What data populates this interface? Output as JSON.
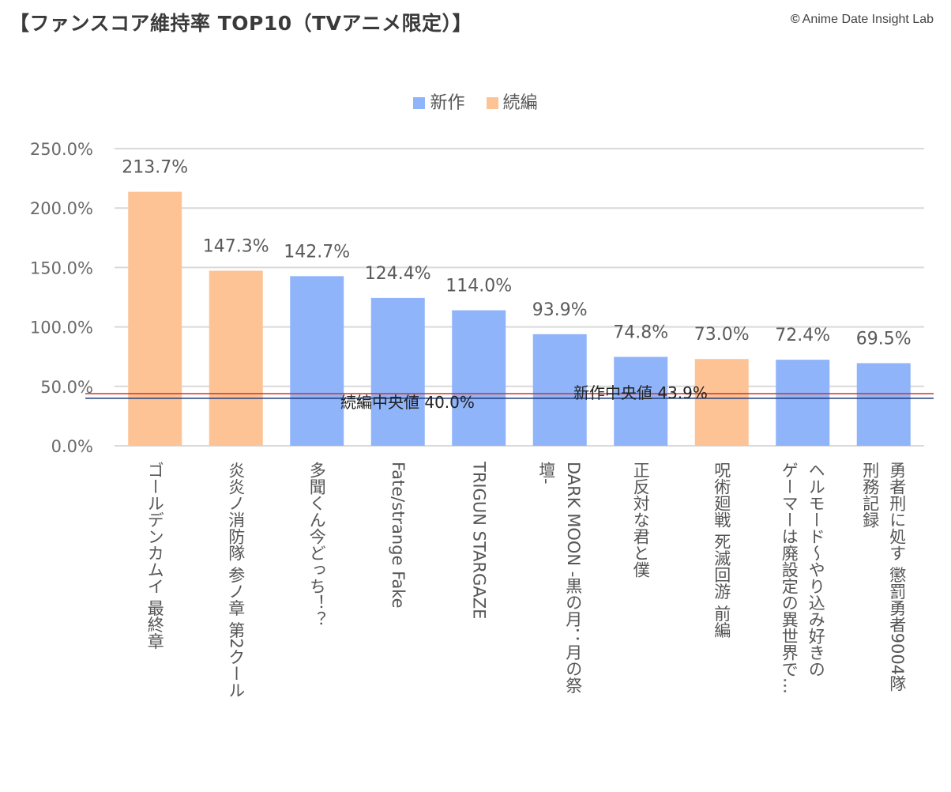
{
  "header": {
    "title": "【ファンスコア維持率 TOP10（TVアニメ限定）】",
    "credit_symbol": "©",
    "credit": "Anime Date Insight Lab"
  },
  "colors": {
    "new": "#8fb4f9",
    "sequel": "#fec395",
    "new_median_line": "#d93025",
    "sequel_median_line": "#1f3a7a",
    "grid": "#d9d9d9"
  },
  "chart_data": {
    "type": "bar",
    "title": "【ファンスコア維持率 TOP10（TVアニメ限定）】",
    "xlabel": "",
    "ylabel": "",
    "ylim": [
      0,
      250
    ],
    "yticks": [
      0,
      50,
      100,
      150,
      200,
      250
    ],
    "ytick_labels": [
      "0.0%",
      "50.0%",
      "100.0%",
      "150.0%",
      "200.0%",
      "250.0%"
    ],
    "legend": [
      {
        "name": "新作",
        "key": "new"
      },
      {
        "name": "続編",
        "key": "sequel"
      }
    ],
    "legend_position": "top-center",
    "categories": [
      "ゴールデンカムイ 最終章",
      "炎炎ノ消防隊 参ノ章 第2クール",
      "多聞くん今どっち！？",
      "Fate/strange Fake",
      "TRIGUN STARGAZE",
      "DARK MOON -黒の月：月の祭壇-",
      "正反対な君と僕",
      "呪術廻戦 死滅回游 前編",
      "ヘルモード～やり込み好きのゲーマーは廃設定の異世界で…",
      "勇者刑に処す 懲罰勇者9004隊刑務記録"
    ],
    "category_lines": [
      [
        "ゴールデンカムイ 最終章"
      ],
      [
        "炎炎ノ消防隊 参ノ章 第2クール"
      ],
      [
        "多聞くん今どっち！？"
      ],
      [
        "Fate/strange Fake"
      ],
      [
        "TRIGUN STARGAZE"
      ],
      [
        "DARK MOON -黒の月：月の祭",
        "壇-"
      ],
      [
        "正反対な君と僕"
      ],
      [
        "呪術廻戦 死滅回游 前編"
      ],
      [
        "ヘルモード～やり込み好きの",
        "ゲーマーは廃設定の異世界で…"
      ],
      [
        "勇者刑に処す 懲罰勇者9004隊",
        "刑務記録"
      ]
    ],
    "values": [
      213.7,
      147.3,
      142.7,
      124.4,
      114.0,
      93.9,
      74.8,
      73.0,
      72.4,
      69.5
    ],
    "value_labels": [
      "213.7%",
      "147.3%",
      "142.7%",
      "124.4%",
      "114.0%",
      "93.9%",
      "74.8%",
      "73.0%",
      "72.4%",
      "69.5%"
    ],
    "types": [
      "sequel",
      "sequel",
      "new",
      "new",
      "new",
      "new",
      "new",
      "sequel",
      "new",
      "new"
    ],
    "reference_lines": [
      {
        "name": "新作中央値",
        "value": 43.9,
        "label": "新作中央値 43.9%",
        "key": "new_median_line"
      },
      {
        "name": "続編中央値",
        "value": 40.0,
        "label": "続編中央値 40.0%",
        "key": "sequel_median_line"
      }
    ]
  }
}
